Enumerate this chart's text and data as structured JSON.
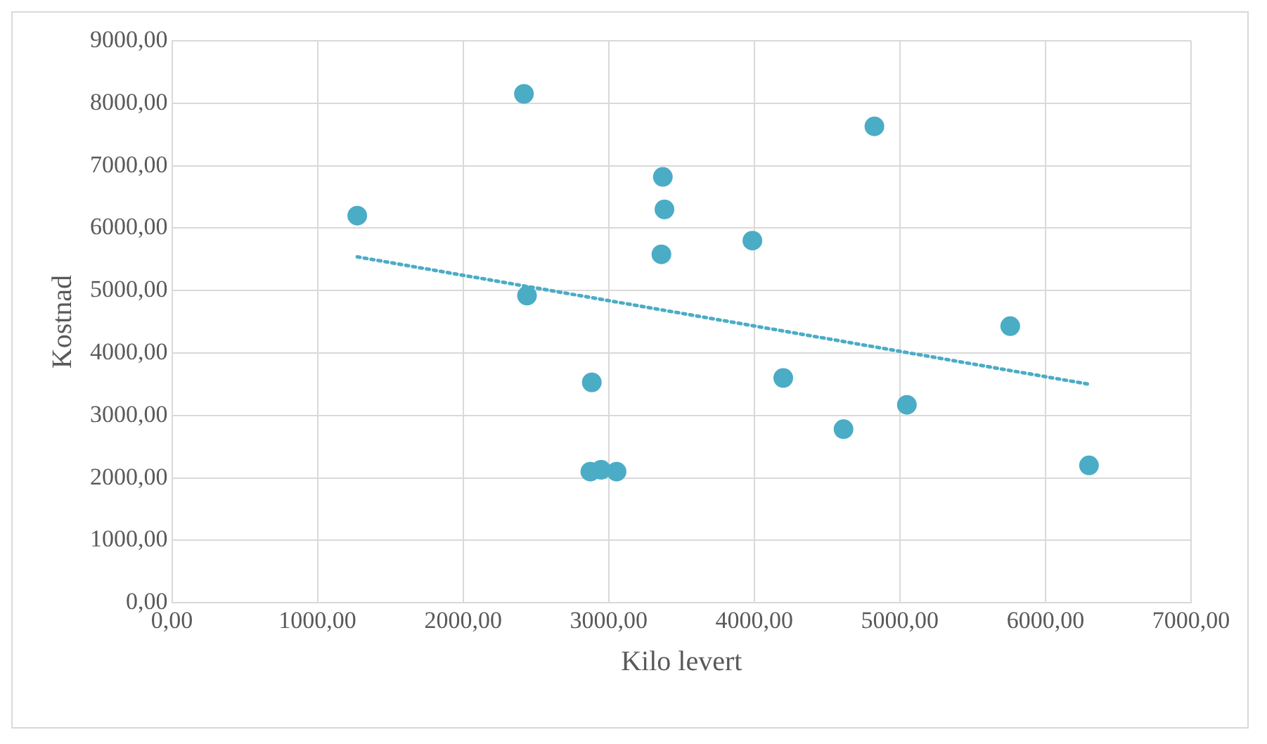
{
  "chart_data": {
    "type": "scatter",
    "xlabel": "Kilo levert",
    "ylabel": "Kostnad",
    "series": [
      {
        "type": "scatter",
        "color": "#4bacc6",
        "marker": "circle",
        "x": [
          1273,
          2418,
          2439,
          2884,
          2874,
          2948,
          3054,
          3372,
          3383,
          3362,
          3987,
          4199,
          4613,
          4825,
          5048,
          5758,
          6299
        ],
        "values": [
          6200,
          8150,
          4920,
          3530,
          2100,
          2130,
          2100,
          6820,
          6300,
          5580,
          5800,
          3600,
          2780,
          7630,
          3170,
          4430,
          2200
        ]
      },
      {
        "type": "line",
        "color": "#4bacc6",
        "line_style": "dotted",
        "marker": "none",
        "x": [
          1273,
          6299
        ],
        "values": [
          5540,
          3500
        ]
      }
    ],
    "xlim": [
      0,
      7000
    ],
    "ylim": [
      0,
      9000
    ],
    "xticks": [
      {
        "value": 0,
        "label": "0,00"
      },
      {
        "value": 1000,
        "label": "1000,00"
      },
      {
        "value": 2000,
        "label": "2000,00"
      },
      {
        "value": 3000,
        "label": "3000,00"
      },
      {
        "value": 4000,
        "label": "4000,00"
      },
      {
        "value": 5000,
        "label": "5000,00"
      },
      {
        "value": 6000,
        "label": "6000,00"
      },
      {
        "value": 7000,
        "label": "7000,00"
      }
    ],
    "yticks": [
      {
        "value": 0,
        "label": "0,00"
      },
      {
        "value": 1000,
        "label": "1000,00"
      },
      {
        "value": 2000,
        "label": "2000,00"
      },
      {
        "value": 3000,
        "label": "3000,00"
      },
      {
        "value": 4000,
        "label": "4000,00"
      },
      {
        "value": 5000,
        "label": "5000,00"
      },
      {
        "value": 6000,
        "label": "6000,00"
      },
      {
        "value": 7000,
        "label": "7000,00"
      },
      {
        "value": 8000,
        "label": "8000,00"
      },
      {
        "value": 9000,
        "label": "9000,00"
      }
    ],
    "grid": true,
    "legend": false
  }
}
